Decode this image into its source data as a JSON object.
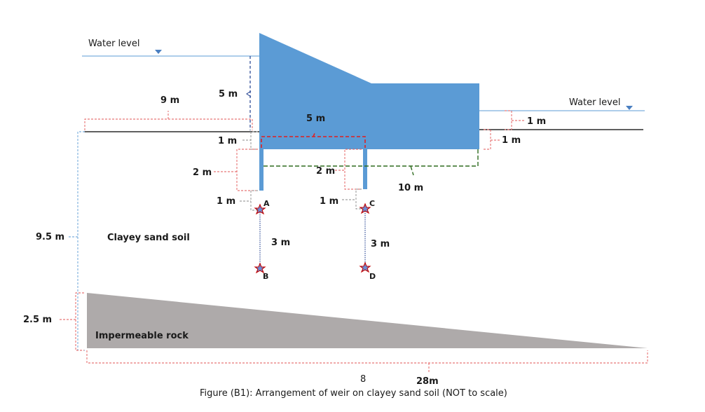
{
  "colors": {
    "weir": "#5b9bd5",
    "water_line": "#5b9bd5",
    "rock": "#aeaaaa",
    "red_dim": "#e25555",
    "red_path": "#e02020",
    "green_path": "#2e6b1f",
    "blue_dim": "#1f3f8f",
    "gray_dim": "#8a8a8a",
    "ground": "#000000",
    "star_outline": "#c00000",
    "star_fill": "#6a8fd8"
  },
  "labels": {
    "water_level_left": "Water level",
    "water_level_right": "Water level",
    "dim_9m": "9 m",
    "dim_5m_head": "5 m",
    "dim_5m_base": "5 m",
    "dim_1m_left_floor": "1 m",
    "dim_2m_left_pile": "2 m",
    "dim_1m_left_tip": "1 m",
    "dim_2m_mid_pile": "2 m",
    "dim_1m_mid_tip": "1 m",
    "dim_10m": "10 m",
    "dim_1m_right_water": "1 m",
    "dim_1m_right_floor": "1 m",
    "dim_9_5m": "9.5 m",
    "dim_2_5m": "2.5 m",
    "dim_3m_left": "3 m",
    "dim_3m_right": "3 m",
    "soil": "Clayey sand soil",
    "rock": "Impermeable rock",
    "point_a": "A",
    "point_b": "B",
    "point_c": "C",
    "point_d": "D",
    "page_number": "8",
    "dim_28m": "28m",
    "caption": "Figure (B1): Arrangement of weir on clayey sand soil (NOT to scale)"
  },
  "icons": {
    "water_marker": "triangle-down-icon",
    "point_marker": "star-icon"
  }
}
